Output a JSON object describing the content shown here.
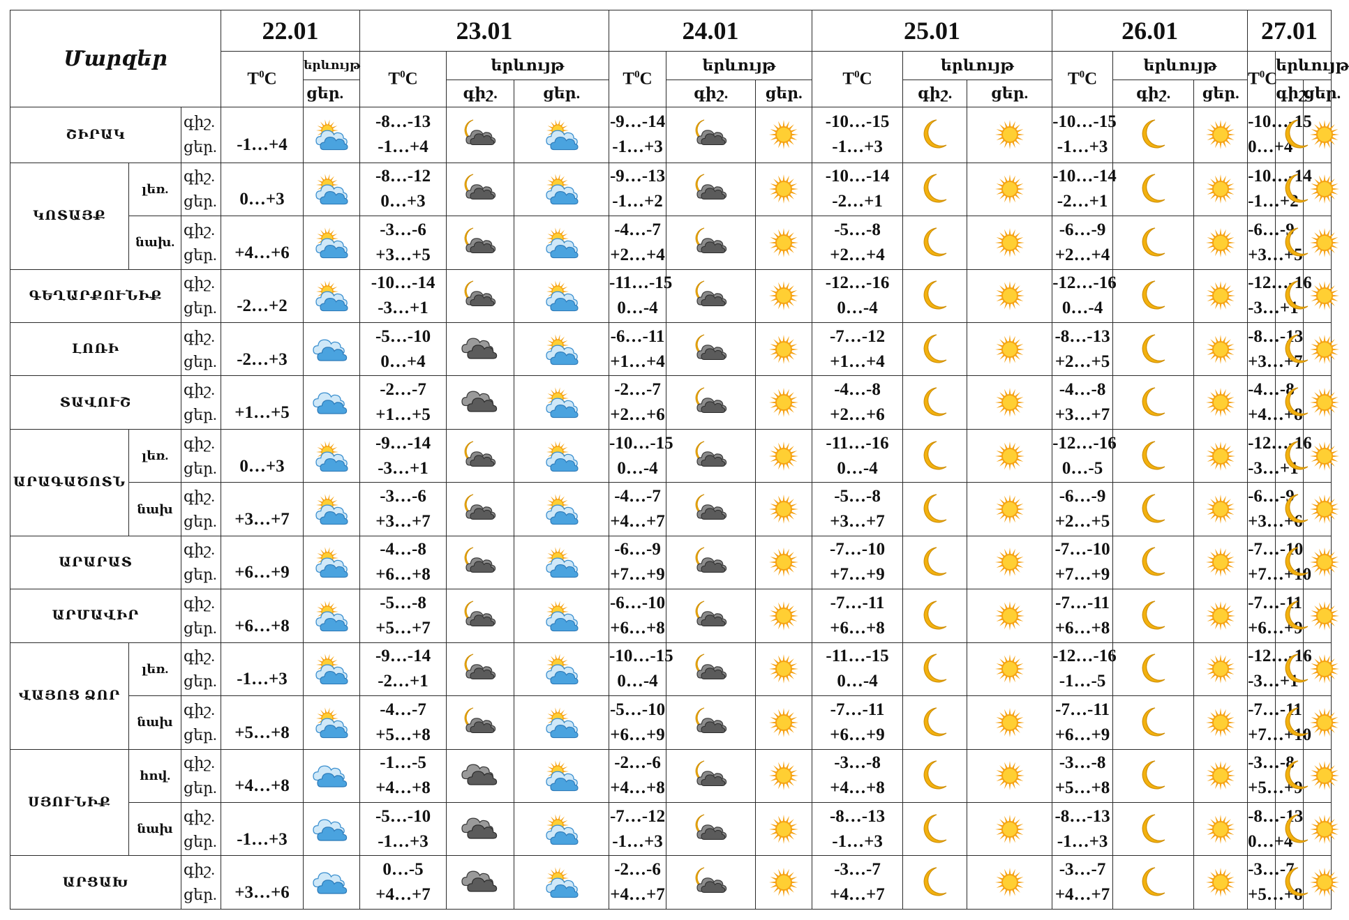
{
  "header": {
    "title": "Մարզեր",
    "dates": [
      "22.01",
      "23.01",
      "24.01",
      "25.01",
      "26.01",
      "27.01"
    ],
    "temp_label_main": "T",
    "temp_label_sup": "0",
    "temp_label_unit": "C",
    "phenomenon_label": "երևույթ",
    "night_label": "գիշ.",
    "day_label": "ցեր."
  },
  "rows": [
    {
      "region": "ՇԻՐԱԿ",
      "subregion": "",
      "d1": {
        "day": "-1…+4",
        "icon": "sun-cloud-rain"
      },
      "days": [
        {
          "night": "-8…-13",
          "day": "-1…+4",
          "icon_n": "moon-cloud",
          "icon_d": "sun-cloud-rain"
        },
        {
          "night": "-9…-14",
          "day": "-1…+3",
          "icon_n": "moon-cloud",
          "icon_d": "sun"
        },
        {
          "night": "-10…-15",
          "day": "-1…+3",
          "icon_n": "moon",
          "icon_d": "sun"
        },
        {
          "night": "-10…-15",
          "day": "-1…+3",
          "icon_n": "moon",
          "icon_d": "sun"
        },
        {
          "night": "-10…-15",
          "day": "0…+4",
          "icon_n": "moon",
          "icon_d": "sun"
        }
      ]
    },
    {
      "region": "ԿՈՏԱՅՔ",
      "subregion": "լեռ.",
      "d1": {
        "day": "0…+3",
        "icon": "sun-cloud-rain"
      },
      "days": [
        {
          "night": "-8…-12",
          "day": "0…+3",
          "icon_n": "moon-cloud",
          "icon_d": "sun-cloud-rain"
        },
        {
          "night": "-9…-13",
          "day": "-1…+2",
          "icon_n": "moon-cloud",
          "icon_d": "sun"
        },
        {
          "night": "-10…-14",
          "day": "-2…+1",
          "icon_n": "moon",
          "icon_d": "sun"
        },
        {
          "night": "-10…-14",
          "day": "-2…+1",
          "icon_n": "moon",
          "icon_d": "sun"
        },
        {
          "night": "-10…-14",
          "day": "-1…+2",
          "icon_n": "moon",
          "icon_d": "sun"
        }
      ]
    },
    {
      "region": "",
      "subregion": "նախ.",
      "d1": {
        "day": "+4…+6",
        "icon": "sun-cloud-rain"
      },
      "days": [
        {
          "night": "-3…-6",
          "day": "+3…+5",
          "icon_n": "moon-cloud",
          "icon_d": "sun-cloud-rain"
        },
        {
          "night": "-4…-7",
          "day": "+2…+4",
          "icon_n": "moon-cloud",
          "icon_d": "sun"
        },
        {
          "night": "-5…-8",
          "day": "+2…+4",
          "icon_n": "moon",
          "icon_d": "sun"
        },
        {
          "night": "-6…-9",
          "day": "+2…+4",
          "icon_n": "moon",
          "icon_d": "sun"
        },
        {
          "night": "-6…-9",
          "day": "+3…+5",
          "icon_n": "moon",
          "icon_d": "sun"
        }
      ]
    },
    {
      "region": "ԳԵՂԱՐՔՈՒՆԻՔ",
      "subregion": "",
      "d1": {
        "day": "-2…+2",
        "icon": "sun-cloud-rain"
      },
      "days": [
        {
          "night": "-10…-14",
          "day": "-3…+1",
          "icon_n": "moon-cloud",
          "icon_d": "sun-cloud-rain"
        },
        {
          "night": "-11…-15",
          "day": "0…-4",
          "icon_n": "moon-cloud",
          "icon_d": "sun"
        },
        {
          "night": "-12…-16",
          "day": "0…-4",
          "icon_n": "moon",
          "icon_d": "sun"
        },
        {
          "night": "-12…-16",
          "day": "0…-4",
          "icon_n": "moon",
          "icon_d": "sun"
        },
        {
          "night": "-12…-16",
          "day": "-3…+1",
          "icon_n": "moon",
          "icon_d": "sun"
        }
      ]
    },
    {
      "region": "ԼՈՌԻ",
      "subregion": "",
      "d1": {
        "day": "-2…+3",
        "icon": "cloud-rain"
      },
      "days": [
        {
          "night": "-5…-10",
          "day": "0…+4",
          "icon_n": "cloud",
          "icon_d": "sun-cloud-rain"
        },
        {
          "night": "-6…-11",
          "day": "+1…+4",
          "icon_n": "moon-cloud",
          "icon_d": "sun"
        },
        {
          "night": "-7…-12",
          "day": "+1…+4",
          "icon_n": "moon",
          "icon_d": "sun"
        },
        {
          "night": "-8…-13",
          "day": "+2…+5",
          "icon_n": "moon",
          "icon_d": "sun"
        },
        {
          "night": "-8…-13",
          "day": "+3…+7",
          "icon_n": "moon",
          "icon_d": "sun"
        }
      ]
    },
    {
      "region": "ՏԱՎՈՒՇ",
      "subregion": "",
      "d1": {
        "day": "+1…+5",
        "icon": "cloud-rain"
      },
      "days": [
        {
          "night": "-2…-7",
          "day": "+1…+5",
          "icon_n": "cloud",
          "icon_d": "sun-cloud-rain"
        },
        {
          "night": "-2…-7",
          "day": "+2…+6",
          "icon_n": "moon-cloud",
          "icon_d": "sun"
        },
        {
          "night": "-4…-8",
          "day": "+2…+6",
          "icon_n": "moon",
          "icon_d": "sun"
        },
        {
          "night": "-4…-8",
          "day": "+3…+7",
          "icon_n": "moon",
          "icon_d": "sun"
        },
        {
          "night": "-4…-8",
          "day": "+4…+8",
          "icon_n": "moon",
          "icon_d": "sun"
        }
      ]
    },
    {
      "region": "ԱՐԱԳԱԾՈՏՆ",
      "subregion": "լեռ.",
      "d1": {
        "day": "0…+3",
        "icon": "sun-cloud-rain"
      },
      "days": [
        {
          "night": "-9…-14",
          "day": "-3…+1",
          "icon_n": "moon-cloud",
          "icon_d": "sun-cloud-rain"
        },
        {
          "night": "-10…-15",
          "day": "0…-4",
          "icon_n": "moon-cloud",
          "icon_d": "sun"
        },
        {
          "night": "-11…-16",
          "day": "0…-4",
          "icon_n": "moon",
          "icon_d": "sun"
        },
        {
          "night": "-12…-16",
          "day": "0…-5",
          "icon_n": "moon",
          "icon_d": "sun"
        },
        {
          "night": "-12…-16",
          "day": "-3…+1",
          "icon_n": "moon",
          "icon_d": "sun"
        }
      ]
    },
    {
      "region": "",
      "subregion": "նախ",
      "d1": {
        "day": "+3…+7",
        "icon": "sun-cloud-rain"
      },
      "days": [
        {
          "night": "-3…-6",
          "day": "+3…+7",
          "icon_n": "moon-cloud",
          "icon_d": "sun-cloud-rain"
        },
        {
          "night": "-4…-7",
          "day": "+4…+7",
          "icon_n": "moon-cloud",
          "icon_d": "sun"
        },
        {
          "night": "-5…-8",
          "day": "+3…+7",
          "icon_n": "moon",
          "icon_d": "sun"
        },
        {
          "night": "-6…-9",
          "day": "+2…+5",
          "icon_n": "moon",
          "icon_d": "sun"
        },
        {
          "night": "-6…-9",
          "day": "+3…+6",
          "icon_n": "moon",
          "icon_d": "sun"
        }
      ]
    },
    {
      "region": "ԱՐԱՐԱՏ",
      "subregion": "",
      "d1": {
        "day": "+6…+9",
        "icon": "sun-cloud-rain"
      },
      "days": [
        {
          "night": "-4…-8",
          "day": "+6…+8",
          "icon_n": "moon-cloud",
          "icon_d": "sun-cloud-rain"
        },
        {
          "night": "-6…-9",
          "day": "+7…+9",
          "icon_n": "moon-cloud",
          "icon_d": "sun"
        },
        {
          "night": "-7…-10",
          "day": "+7…+9",
          "icon_n": "moon",
          "icon_d": "sun"
        },
        {
          "night": "-7…-10",
          "day": "+7…+9",
          "icon_n": "moon",
          "icon_d": "sun"
        },
        {
          "night": "-7…-10",
          "day": "+7…+10",
          "icon_n": "moon",
          "icon_d": "sun"
        }
      ]
    },
    {
      "region": "ԱՐՄԱՎԻՐ",
      "subregion": "",
      "d1": {
        "day": "+6…+8",
        "icon": "sun-cloud-rain"
      },
      "days": [
        {
          "night": "-5…-8",
          "day": "+5…+7",
          "icon_n": "moon-cloud",
          "icon_d": "sun-cloud-rain"
        },
        {
          "night": "-6…-10",
          "day": "+6…+8",
          "icon_n": "moon-cloud",
          "icon_d": "sun"
        },
        {
          "night": "-7…-11",
          "day": "+6…+8",
          "icon_n": "moon",
          "icon_d": "sun"
        },
        {
          "night": "-7…-11",
          "day": "+6…+8",
          "icon_n": "moon",
          "icon_d": "sun"
        },
        {
          "night": "-7…-11",
          "day": "+6…+9",
          "icon_n": "moon",
          "icon_d": "sun"
        }
      ]
    },
    {
      "region": "ՎԱՅՈՑ ՁՈՐ",
      "subregion": "լեռ.",
      "d1": {
        "day": "-1…+3",
        "icon": "sun-cloud-rain"
      },
      "days": [
        {
          "night": "-9…-14",
          "day": "-2…+1",
          "icon_n": "moon-cloud",
          "icon_d": "sun-cloud-rain"
        },
        {
          "night": "-10…-15",
          "day": "0…-4",
          "icon_n": "moon-cloud",
          "icon_d": "sun"
        },
        {
          "night": "-11…-15",
          "day": "0…-4",
          "icon_n": "moon",
          "icon_d": "sun"
        },
        {
          "night": "-12…-16",
          "day": "-1…-5",
          "icon_n": "moon",
          "icon_d": "sun"
        },
        {
          "night": "-12…-16",
          "day": "-3…+1",
          "icon_n": "moon",
          "icon_d": "sun"
        }
      ]
    },
    {
      "region": "",
      "subregion": "նախ",
      "d1": {
        "day": "+5…+8",
        "icon": "sun-cloud-rain"
      },
      "days": [
        {
          "night": "-4…-7",
          "day": "+5…+8",
          "icon_n": "moon-cloud",
          "icon_d": "sun-cloud-rain"
        },
        {
          "night": "-5…-10",
          "day": "+6…+9",
          "icon_n": "moon-cloud",
          "icon_d": "sun"
        },
        {
          "night": "-7…-11",
          "day": "+6…+9",
          "icon_n": "moon",
          "icon_d": "sun"
        },
        {
          "night": "-7…-11",
          "day": "+6…+9",
          "icon_n": "moon",
          "icon_d": "sun"
        },
        {
          "night": "-7…-11",
          "day": "+7…+10",
          "icon_n": "moon",
          "icon_d": "sun"
        }
      ]
    },
    {
      "region": "ՍՅՈՒՆԻՔ",
      "subregion": "հով.",
      "d1": {
        "day": "+4…+8",
        "icon": "cloud-rain"
      },
      "days": [
        {
          "night": "-1…-5",
          "day": "+4…+8",
          "icon_n": "cloud",
          "icon_d": "sun-cloud-rain"
        },
        {
          "night": "-2…-6",
          "day": "+4…+8",
          "icon_n": "moon-cloud",
          "icon_d": "sun"
        },
        {
          "night": "-3…-8",
          "day": "+4…+8",
          "icon_n": "moon",
          "icon_d": "sun"
        },
        {
          "night": "-3…-8",
          "day": "+5…+8",
          "icon_n": "moon",
          "icon_d": "sun"
        },
        {
          "night": "-3…-8",
          "day": "+5…+9",
          "icon_n": "moon",
          "icon_d": "sun"
        }
      ]
    },
    {
      "region": "",
      "subregion": "նախ",
      "d1": {
        "day": "-1…+3",
        "icon": "cloud-rain"
      },
      "days": [
        {
          "night": "-5…-10",
          "day": "-1…+3",
          "icon_n": "cloud",
          "icon_d": "sun-cloud-rain"
        },
        {
          "night": "-7…-12",
          "day": "-1…+3",
          "icon_n": "moon-cloud",
          "icon_d": "sun"
        },
        {
          "night": "-8…-13",
          "day": "-1…+3",
          "icon_n": "moon",
          "icon_d": "sun"
        },
        {
          "night": "-8…-13",
          "day": "-1…+3",
          "icon_n": "moon",
          "icon_d": "sun"
        },
        {
          "night": "-8…-13",
          "day": "0…+4",
          "icon_n": "moon",
          "icon_d": "sun"
        }
      ]
    },
    {
      "region": "ԱՐՑԱԽ",
      "subregion": "",
      "d1": {
        "day": "+3…+6",
        "icon": "cloud-rain"
      },
      "days": [
        {
          "night": "0…-5",
          "day": "+4…+7",
          "icon_n": "cloud",
          "icon_d": "sun-cloud-rain"
        },
        {
          "night": "-2…-6",
          "day": "+4…+7",
          "icon_n": "moon-cloud",
          "icon_d": "sun"
        },
        {
          "night": "-3…-7",
          "day": "+4…+7",
          "icon_n": "moon",
          "icon_d": "sun"
        },
        {
          "night": "-3…-7",
          "day": "+4…+7",
          "icon_n": "moon",
          "icon_d": "sun"
        },
        {
          "night": "-3…-7",
          "day": "+5…+8",
          "icon_n": "moon",
          "icon_d": "sun"
        }
      ]
    }
  ],
  "colors": {
    "sun": "#f5a214",
    "sun_core": "#ffcf33",
    "cloud_blue": "#4aa3df",
    "cloud_dark": "#5b5b5b",
    "moon": "#f2b10f",
    "border": "#2a2a2a"
  }
}
